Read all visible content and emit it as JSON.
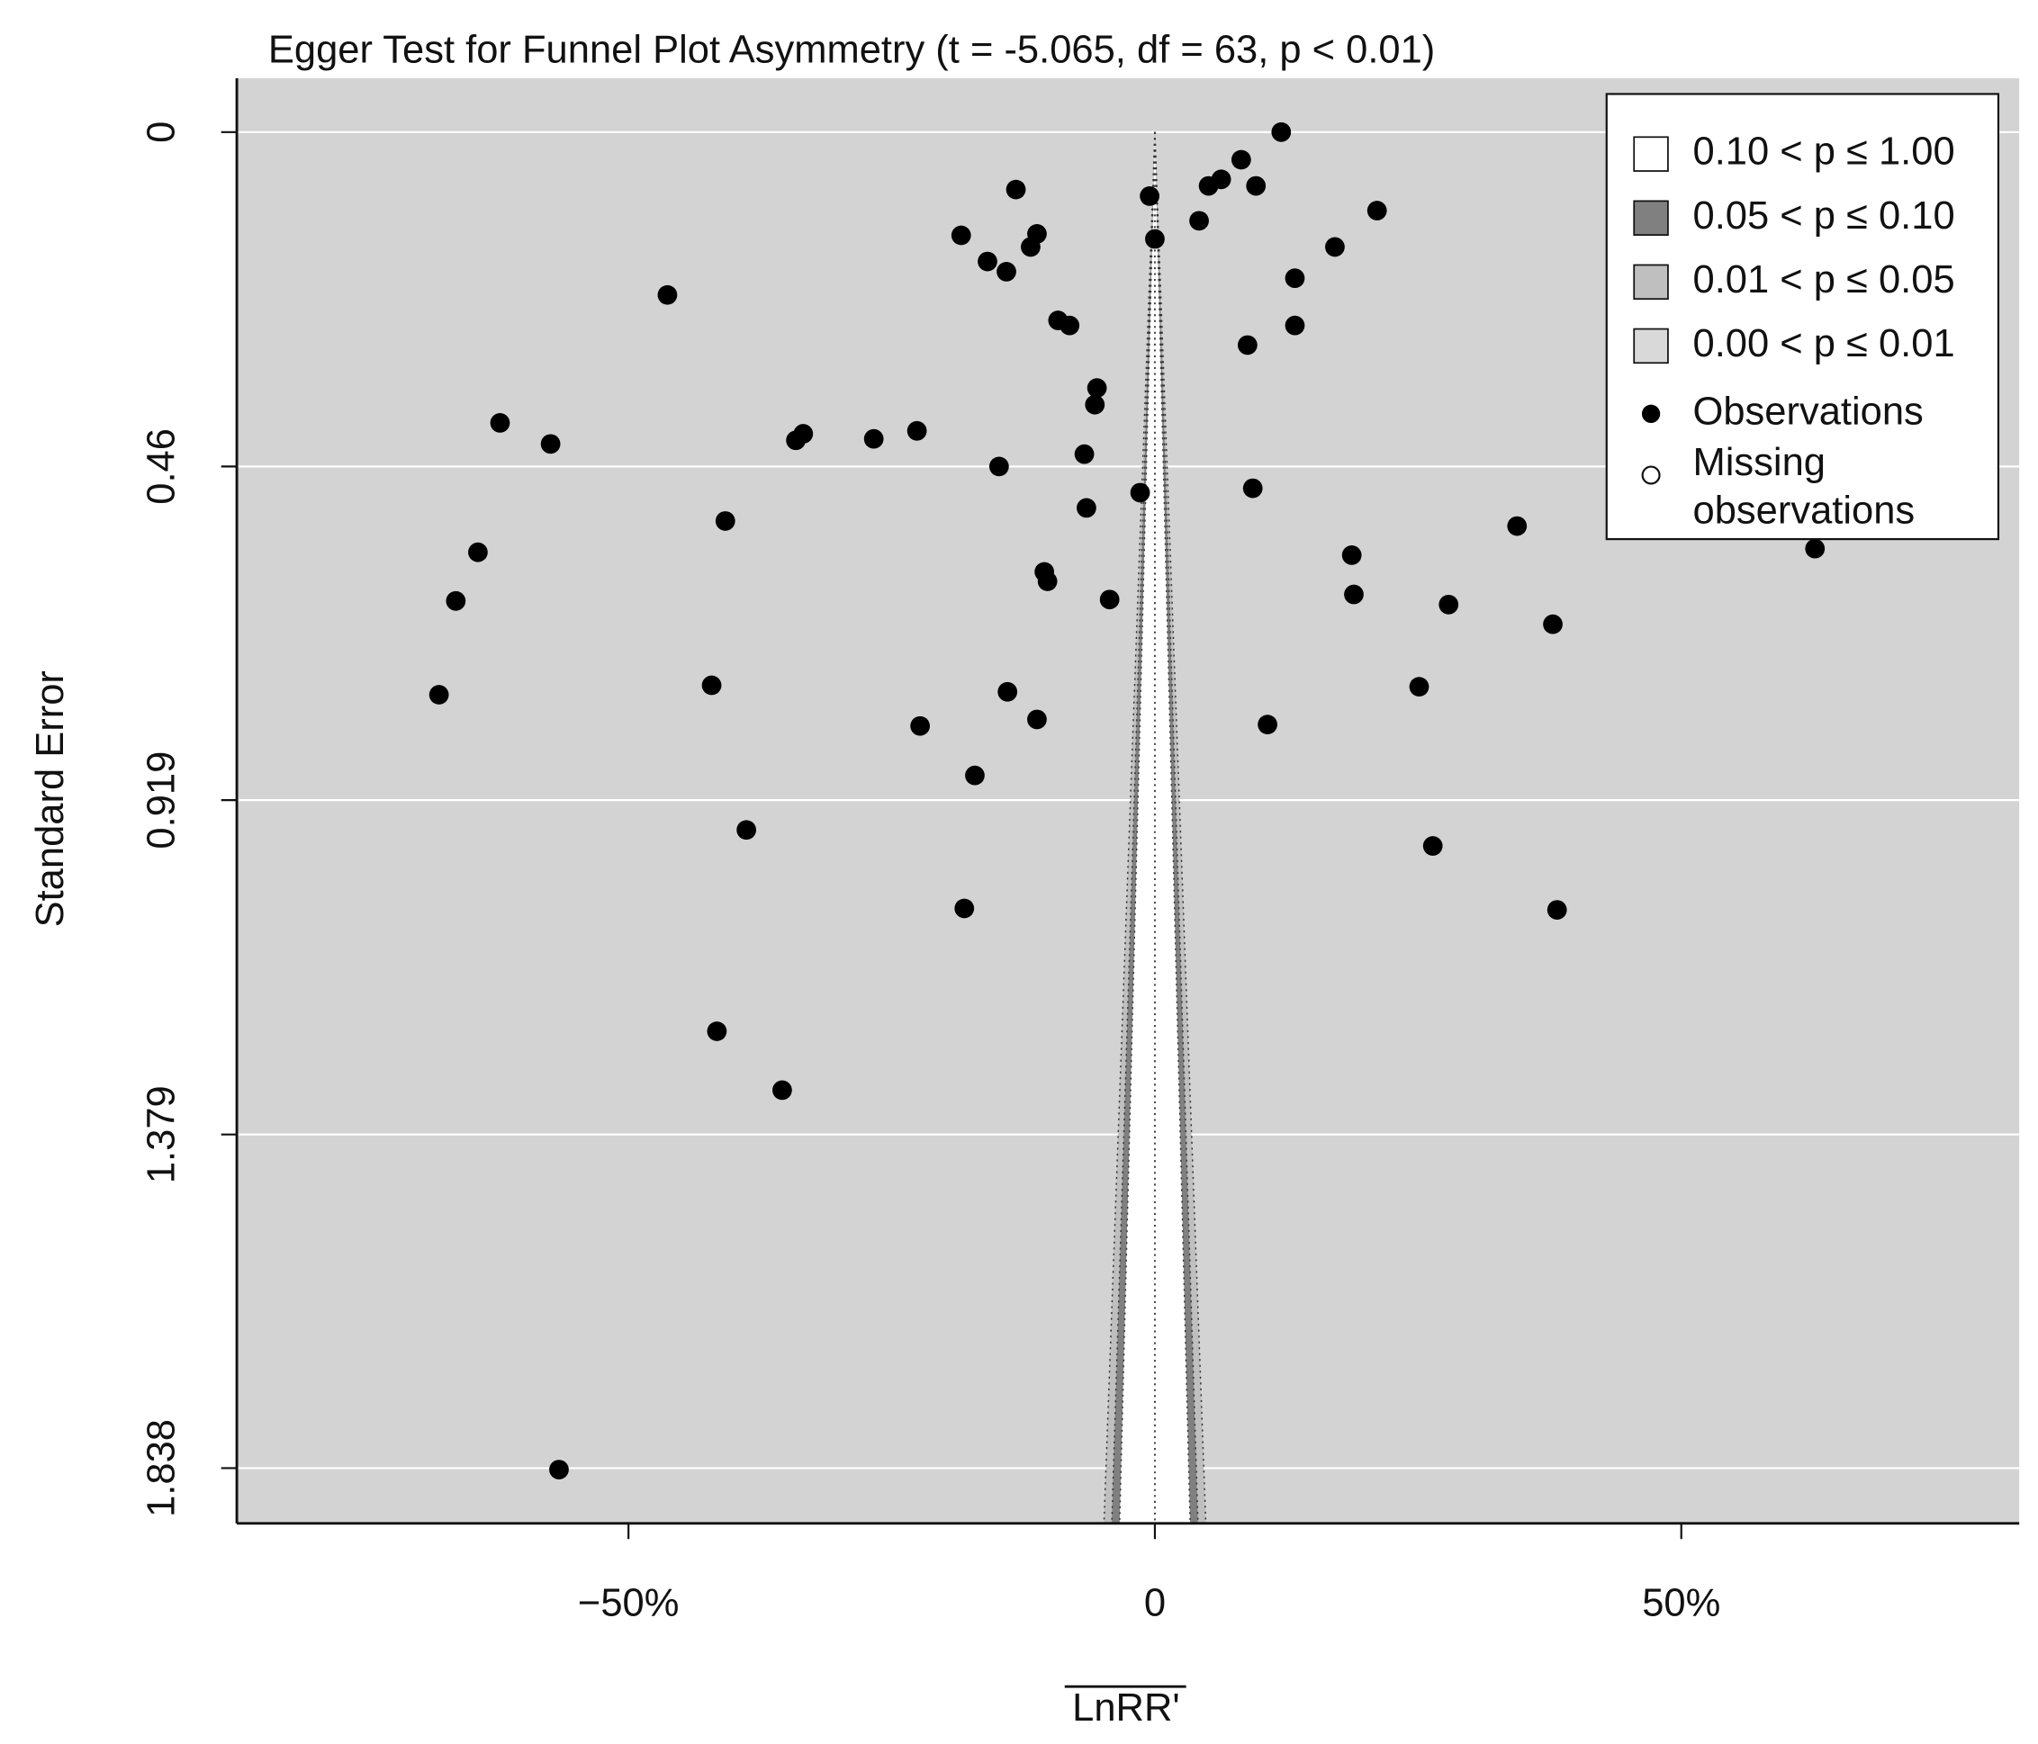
{
  "chart_data": {
    "type": "scatter",
    "title": "Egger Test for Funnel Plot Asymmetry (t = -5.065, df = 63, p < 0.01)",
    "x_label": "LnRR'",
    "y_label": "Standard Error",
    "xlim": [
      -87.2,
      82.1
    ],
    "xticks": [
      {
        "value": -50,
        "label": "−50%"
      },
      0,
      {
        "value": 50,
        "label": "50%"
      }
    ],
    "ylim": [
      -0.074,
      1.914
    ],
    "y_inverted": true,
    "yticks": [
      0,
      0.46,
      0.919,
      1.379,
      1.838
    ],
    "grid": true,
    "background": "#d3d3d3",
    "legend_position": "top-right",
    "contours": [
      {
        "label": "0.10 < p ≤ 1.00",
        "color": "#ffffff"
      },
      {
        "label": "0.05 < p ≤ 0.10",
        "color": "#808080"
      },
      {
        "label": "0.01 < p ≤ 0.05",
        "color": "#bfbfbf"
      },
      {
        "label": "0.00 < p ≤ 0.01",
        "color": "#d9d9d9"
      }
    ],
    "missing_label": [
      "Missing",
      "observations"
    ],
    "series": [
      {
        "name": "Observations",
        "color": "#000000",
        "x": [
          12.0,
          8.2,
          6.3,
          5.1,
          9.6,
          -13.2,
          -0.5,
          21.1,
          4.2,
          0.0,
          -18.4,
          -11.2,
          -11.8,
          -15.9,
          -14.1,
          17.1,
          13.3,
          -46.3,
          -9.2,
          -8.1,
          13.3,
          8.8,
          -5.5,
          -5.7,
          -62.2,
          -57.4,
          -34.1,
          -33.4,
          -26.7,
          -22.6,
          -14.8,
          -6.7,
          -1.4,
          9.3,
          -6.5,
          -40.8,
          34.4,
          -64.3,
          62.7,
          18.7,
          -10.5,
          -10.2,
          -66.4,
          -4.3,
          18.9,
          27.9,
          37.8,
          -68.0,
          -42.1,
          -14.0,
          25.1,
          -22.3,
          -11.2,
          10.7,
          -17.1,
          -38.8,
          26.4,
          -18.1,
          38.2,
          -41.6,
          -35.4,
          -56.6
        ],
        "values": [
          0.0,
          0.038,
          0.065,
          0.074,
          0.074,
          0.079,
          0.088,
          0.108,
          0.122,
          0.147,
          0.142,
          0.14,
          0.158,
          0.178,
          0.192,
          0.158,
          0.201,
          0.224,
          0.259,
          0.266,
          0.266,
          0.293,
          0.352,
          0.375,
          0.4,
          0.429,
          0.424,
          0.415,
          0.422,
          0.411,
          0.46,
          0.443,
          0.496,
          0.49,
          0.517,
          0.535,
          0.542,
          0.578,
          0.573,
          0.582,
          0.605,
          0.618,
          0.645,
          0.643,
          0.636,
          0.65,
          0.677,
          0.774,
          0.761,
          0.77,
          0.763,
          0.817,
          0.808,
          0.815,
          0.885,
          0.96,
          0.982,
          1.068,
          1.07,
          1.237,
          1.318,
          1.84
        ]
      }
    ]
  }
}
